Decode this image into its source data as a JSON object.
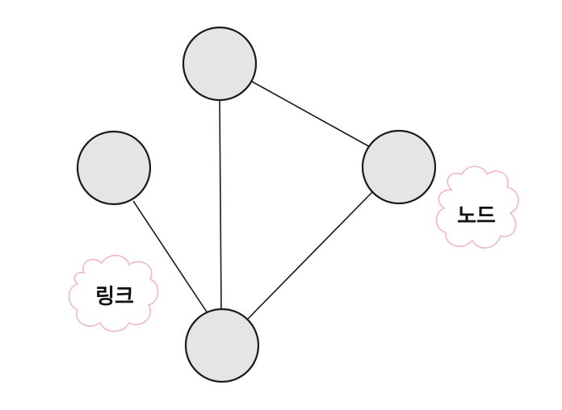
{
  "diagram": {
    "nodes": [
      {
        "id": "top"
      },
      {
        "id": "left"
      },
      {
        "id": "right"
      },
      {
        "id": "bottom"
      }
    ],
    "edges": [
      {
        "from": "top",
        "to": "right"
      },
      {
        "from": "top",
        "to": "bottom"
      },
      {
        "from": "right",
        "to": "bottom"
      },
      {
        "from": "left",
        "to": "bottom"
      }
    ],
    "callouts": {
      "node": {
        "text": "노드"
      },
      "link": {
        "text": "링크"
      }
    }
  },
  "colors": {
    "node_fill": "#e6e4e5",
    "node_stroke": "#1a1a1a",
    "edge": "#1a1a1a",
    "cloud_stroke": "#f0b7c8",
    "cloud_fill": "#ffffff"
  }
}
